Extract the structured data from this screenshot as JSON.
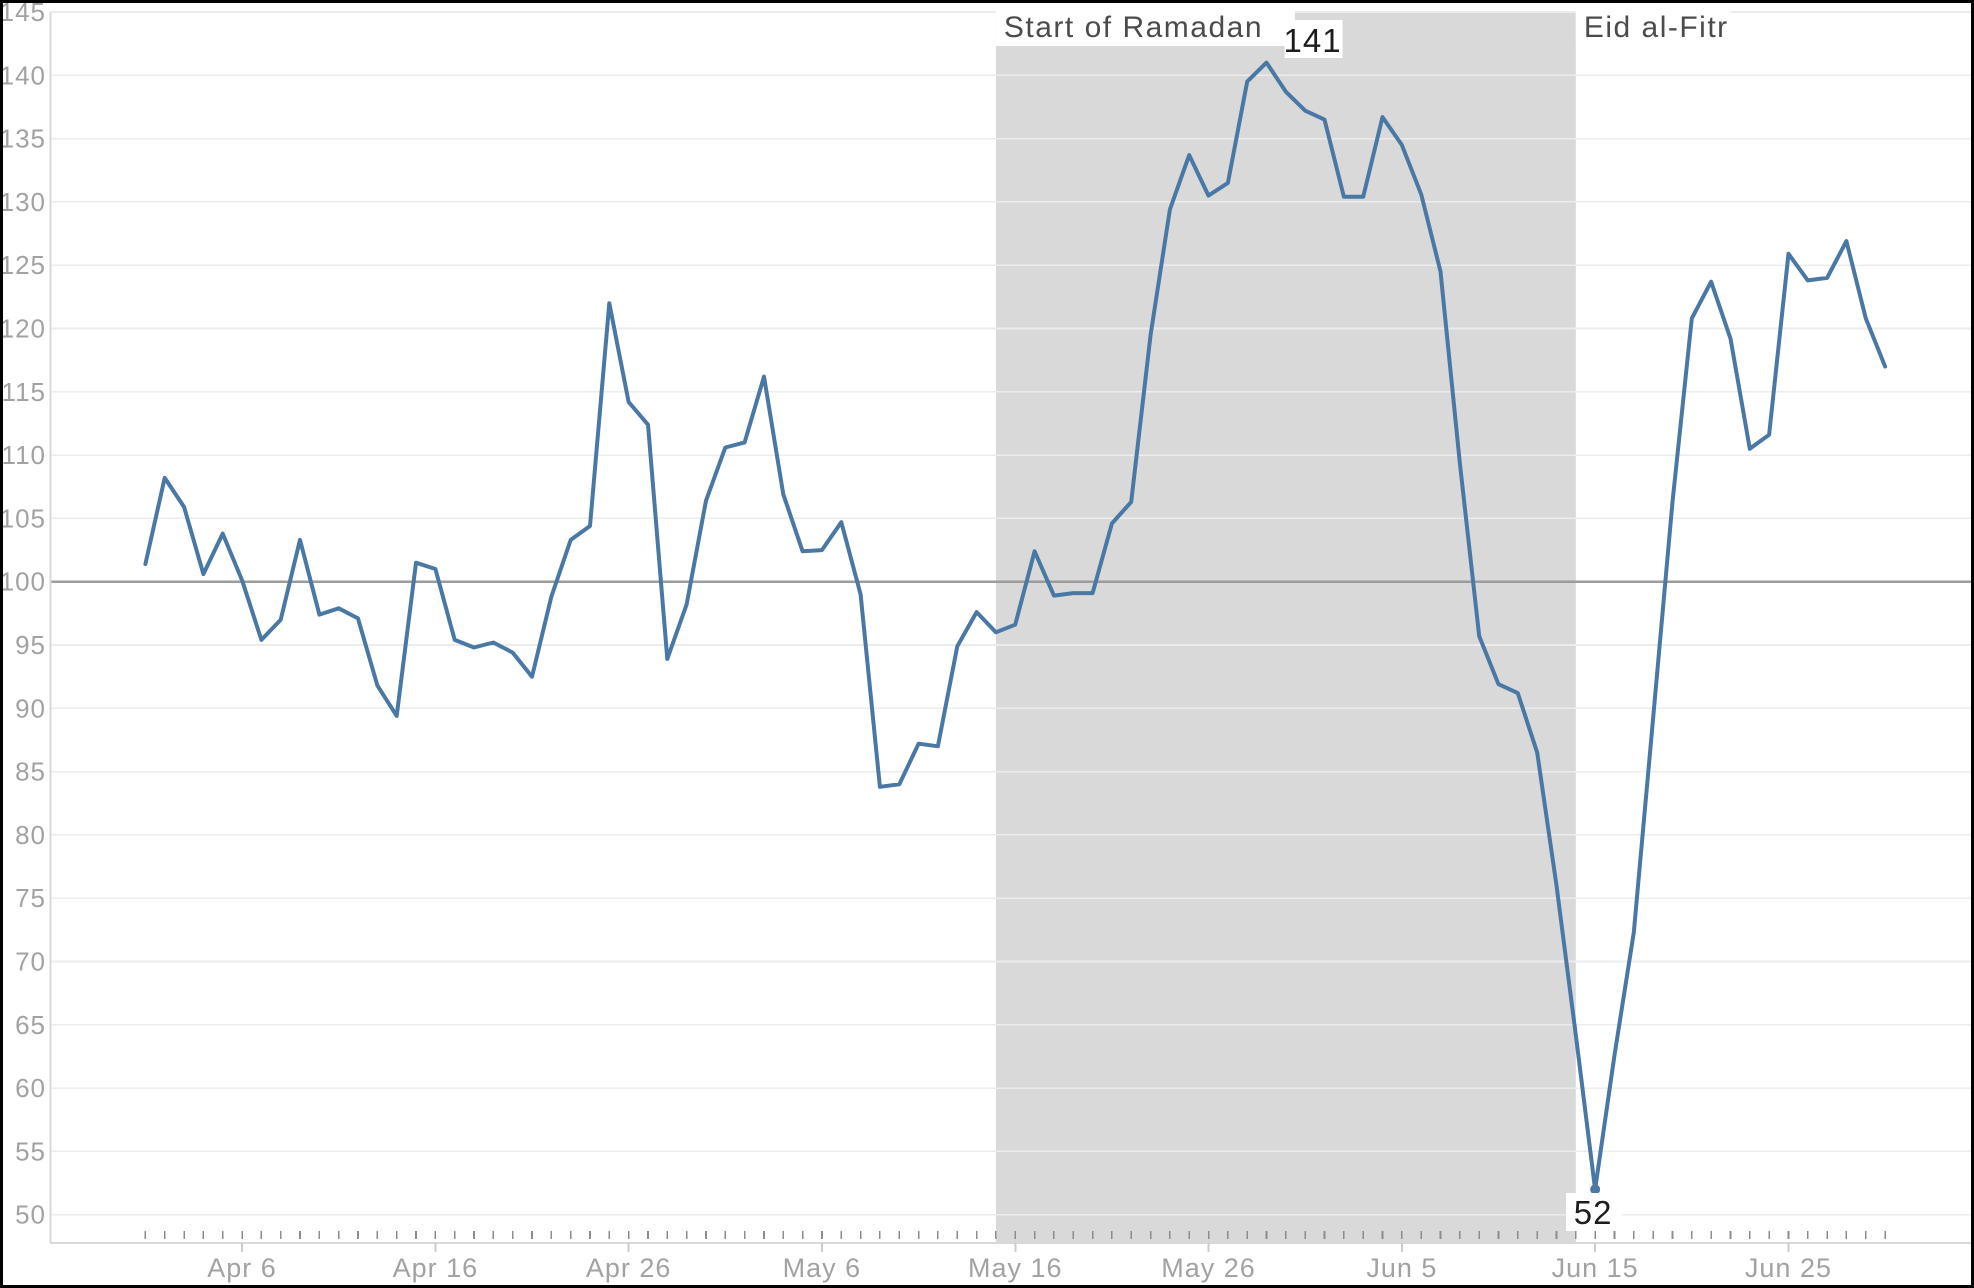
{
  "chart_data": {
    "type": "line",
    "title": "",
    "xlabel": "",
    "ylabel": "",
    "ylim": [
      50,
      145
    ],
    "baseline": 100,
    "grid": true,
    "legend_position": "none",
    "x": [
      "Apr 1",
      "Apr 2",
      "Apr 3",
      "Apr 4",
      "Apr 5",
      "Apr 6",
      "Apr 7",
      "Apr 8",
      "Apr 9",
      "Apr 10",
      "Apr 11",
      "Apr 12",
      "Apr 13",
      "Apr 14",
      "Apr 15",
      "Apr 16",
      "Apr 17",
      "Apr 18",
      "Apr 19",
      "Apr 20",
      "Apr 21",
      "Apr 22",
      "Apr 23",
      "Apr 24",
      "Apr 25",
      "Apr 26",
      "Apr 27",
      "Apr 28",
      "Apr 29",
      "Apr 30",
      "May 1",
      "May 2",
      "May 3",
      "May 4",
      "May 5",
      "May 6",
      "May 7",
      "May 8",
      "May 9",
      "May 10",
      "May 11",
      "May 12",
      "May 13",
      "May 14",
      "May 15",
      "May 16",
      "May 17",
      "May 18",
      "May 19",
      "May 20",
      "May 21",
      "May 22",
      "May 23",
      "May 24",
      "May 25",
      "May 26",
      "May 27",
      "May 28",
      "May 29",
      "May 30",
      "May 31",
      "Jun 1",
      "Jun 2",
      "Jun 3",
      "Jun 4",
      "Jun 5",
      "Jun 6",
      "Jun 7",
      "Jun 8",
      "Jun 9",
      "Jun 10",
      "Jun 11",
      "Jun 12",
      "Jun 13",
      "Jun 14",
      "Jun 15",
      "Jun 16",
      "Jun 17",
      "Jun 18",
      "Jun 19",
      "Jun 20",
      "Jun 21",
      "Jun 22",
      "Jun 23",
      "Jun 24",
      "Jun 25",
      "Jun 26",
      "Jun 27",
      "Jun 28",
      "Jun 29",
      "Jun 30"
    ],
    "values": [
      101.4,
      108.2,
      105.9,
      100.6,
      103.8,
      100.1,
      95.4,
      97.0,
      103.3,
      97.4,
      97.9,
      97.1,
      91.8,
      89.4,
      101.5,
      101.0,
      95.4,
      94.8,
      95.2,
      94.4,
      92.5,
      98.8,
      103.3,
      104.4,
      122.0,
      114.2,
      112.4,
      93.9,
      98.2,
      106.4,
      110.6,
      111.0,
      116.2,
      106.9,
      102.4,
      102.5,
      104.7,
      99.0,
      83.8,
      84.0,
      87.2,
      87.0,
      94.9,
      97.6,
      96.0,
      96.6,
      102.4,
      98.9,
      99.1,
      99.1,
      104.6,
      106.3,
      119.5,
      129.4,
      133.7,
      130.5,
      131.5,
      139.5,
      141,
      138.7,
      137.2,
      136.5,
      130.4,
      130.4,
      136.7,
      134.5,
      130.6,
      124.5,
      109.4,
      95.7,
      91.9,
      91.2,
      86.5,
      76.0,
      64.2,
      52,
      62.6,
      72.3,
      89.2,
      106.3,
      120.8,
      123.7,
      119.2,
      110.5,
      111.6,
      125.9,
      123.8,
      124.0,
      126.9,
      120.8,
      117.0
    ],
    "y_ticks": [
      145,
      140,
      135,
      130,
      125,
      120,
      115,
      110,
      105,
      100,
      95,
      90,
      85,
      80,
      75,
      70,
      65,
      60,
      55,
      50
    ],
    "x_ticks": [
      "Apr 6",
      "Apr 16",
      "Apr 26",
      "May 6",
      "May 16",
      "May 26",
      "Jun 5",
      "Jun 15",
      "Jun 25"
    ],
    "shaded_band": {
      "start": "May 15",
      "end": "Jun 14"
    },
    "annotations": {
      "ramadan_label": "Start of Ramadan",
      "eid_label": "Eid al-Fitr",
      "peak_label": "141",
      "peak_date": "May 29",
      "trough_label": "52",
      "trough_date": "Jun 15"
    },
    "colors": {
      "line": "#4a78a5",
      "band": "#d9d9d9",
      "grid": "#ececec",
      "baseline_100": "#9c9c9c",
      "axis": "#d8d8d8",
      "tick_text": "#a2a2a2",
      "annotation_text": "#4b4b4b",
      "annotation_value_text": "#1d1d1d",
      "background": "#ffffff",
      "border": "#000000"
    }
  }
}
